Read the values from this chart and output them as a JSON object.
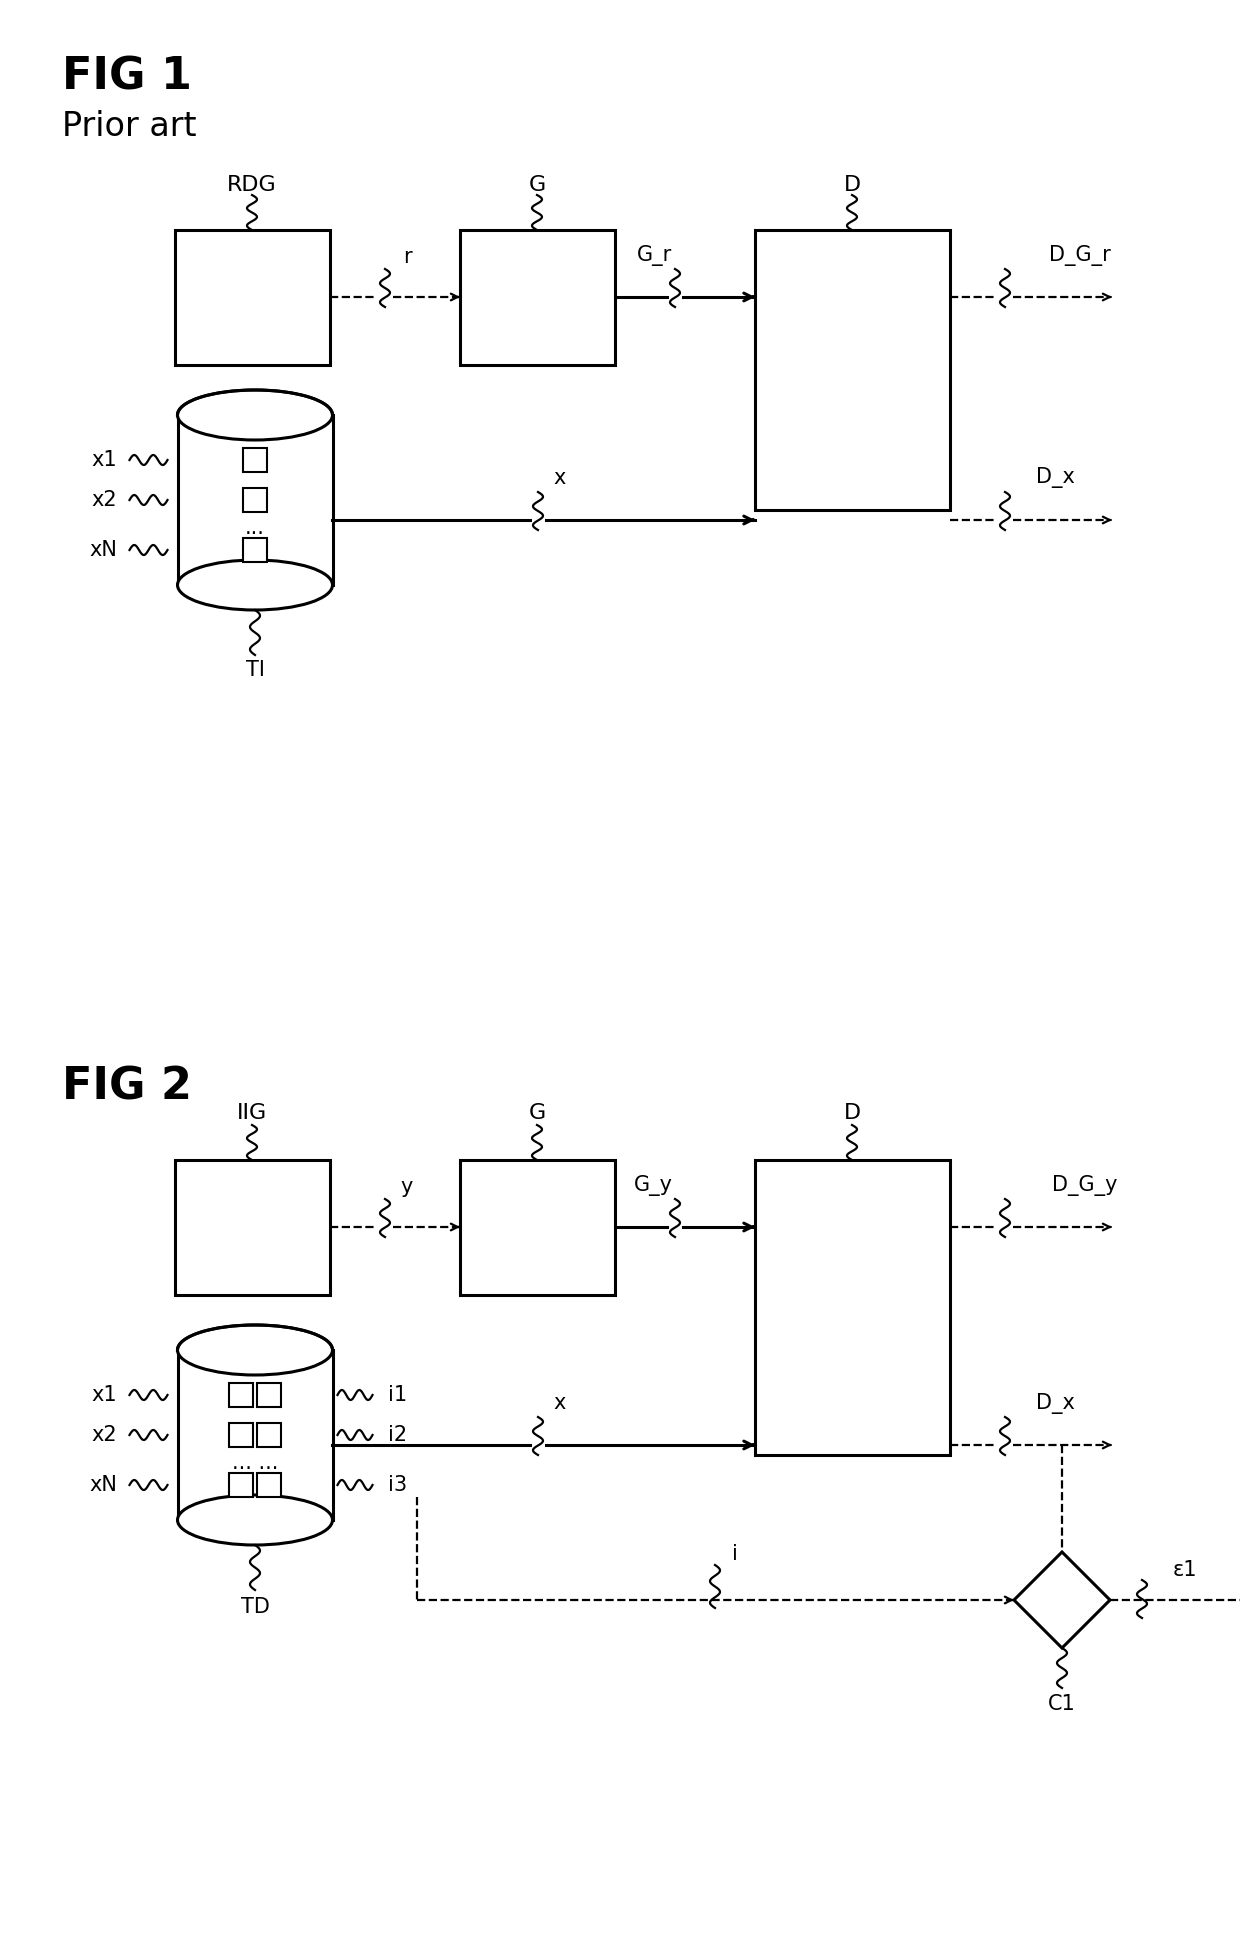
{
  "fig_width": 12.4,
  "fig_height": 19.47,
  "bg_color": "#ffffff",
  "lc": "#000000",
  "fig1_title": "FIG 1",
  "fig1_subtitle": "Prior art",
  "fig2_title": "FIG 2",
  "lw_thick": 2.2,
  "lw_thin": 1.6,
  "fontsize_title": 32,
  "fontsize_subtitle": 24,
  "fontsize_label": 16,
  "fontsize_small": 15
}
